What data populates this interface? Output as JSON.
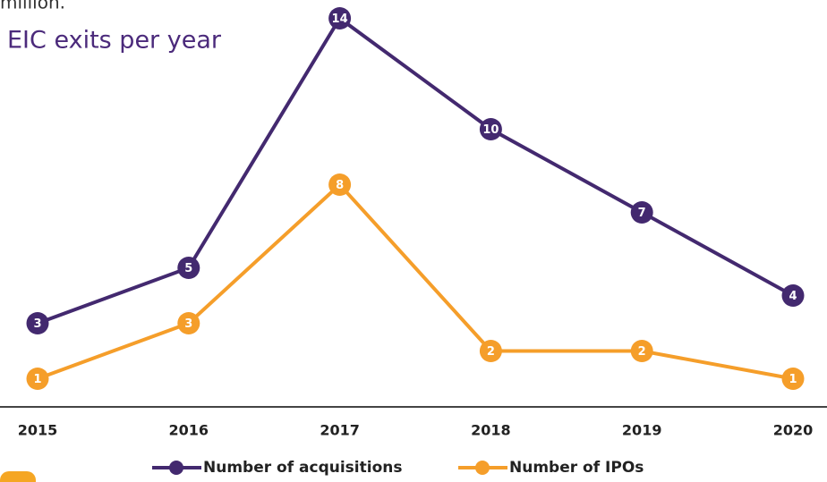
{
  "header_text": "million.",
  "chart_data": {
    "type": "line",
    "title": "EIC exits per year",
    "categories": [
      "2015",
      "2016",
      "2017",
      "2018",
      "2019",
      "2020"
    ],
    "series": [
      {
        "name": "Number of acquisitions",
        "color": "#43296f",
        "values": [
          3,
          5,
          14,
          10,
          7,
          4
        ]
      },
      {
        "name": "Number of IPOs",
        "color": "#f59e2a",
        "values": [
          1,
          3,
          8,
          2,
          2,
          1
        ]
      }
    ],
    "ylim": [
      0,
      14
    ],
    "legend": "bottom"
  }
}
